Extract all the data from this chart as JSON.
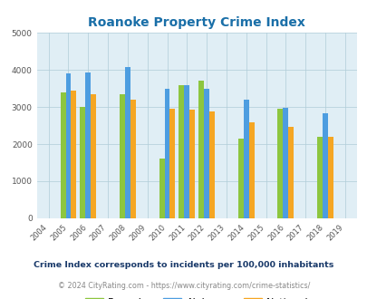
{
  "title": "Roanoke Property Crime Index",
  "subtitle": "Crime Index corresponds to incidents per 100,000 inhabitants",
  "footer": "© 2024 CityRating.com - https://www.cityrating.com/crime-statistics/",
  "years": [
    2004,
    2005,
    2006,
    2007,
    2008,
    2009,
    2010,
    2011,
    2012,
    2013,
    2014,
    2015,
    2016,
    2017,
    2018,
    2019
  ],
  "data_years": [
    2005,
    2006,
    2008,
    2010,
    2011,
    2012,
    2014,
    2016,
    2018
  ],
  "roanoke": [
    3400,
    3000,
    3350,
    1600,
    3600,
    3720,
    2150,
    2950,
    2200
  ],
  "alabama": [
    3900,
    3940,
    4080,
    3500,
    3600,
    3500,
    3200,
    2980,
    2830
  ],
  "national": [
    3440,
    3340,
    3210,
    2960,
    2920,
    2870,
    2600,
    2460,
    2200
  ],
  "roanoke_color": "#8dc63f",
  "alabama_color": "#4d9de0",
  "national_color": "#f5a623",
  "bg_color": "#e0eef5",
  "title_color": "#1a6fa8",
  "subtitle_color": "#1a3a6a",
  "footer_color": "#888888",
  "footer_link_color": "#4d9de0",
  "ylim": [
    0,
    5000
  ],
  "yticks": [
    0,
    1000,
    2000,
    3000,
    4000,
    5000
  ],
  "grid_color": "#b0ccd8",
  "bar_width": 0.27
}
